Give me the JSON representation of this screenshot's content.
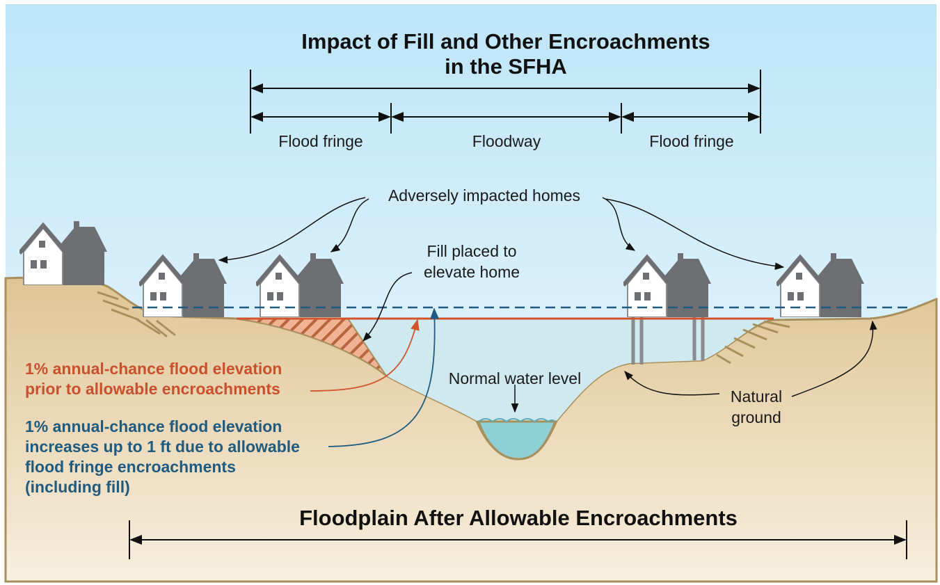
{
  "title": [
    "Impact of Fill and Other Encroachments",
    "in the SFHA"
  ],
  "zones": [
    "Flood fringe",
    "Floodway",
    "Flood fringe"
  ],
  "homes_label": "Adversely impacted homes",
  "fill_label": [
    "Fill placed to",
    "elevate home"
  ],
  "prior_flood_label": [
    "1% annual-chance flood elevation",
    "prior to allowable encroachments"
  ],
  "increased_flood_label": [
    "1% annual-chance flood elevation",
    "increases up to 1 ft due to allowable",
    "flood fringe encroachments",
    "(including fill)"
  ],
  "normal_water_label": "Normal water level",
  "natural_ground_label": [
    "Natural",
    "ground"
  ],
  "floodplain_label": "Floodplain After Allowable Encroachments"
}
